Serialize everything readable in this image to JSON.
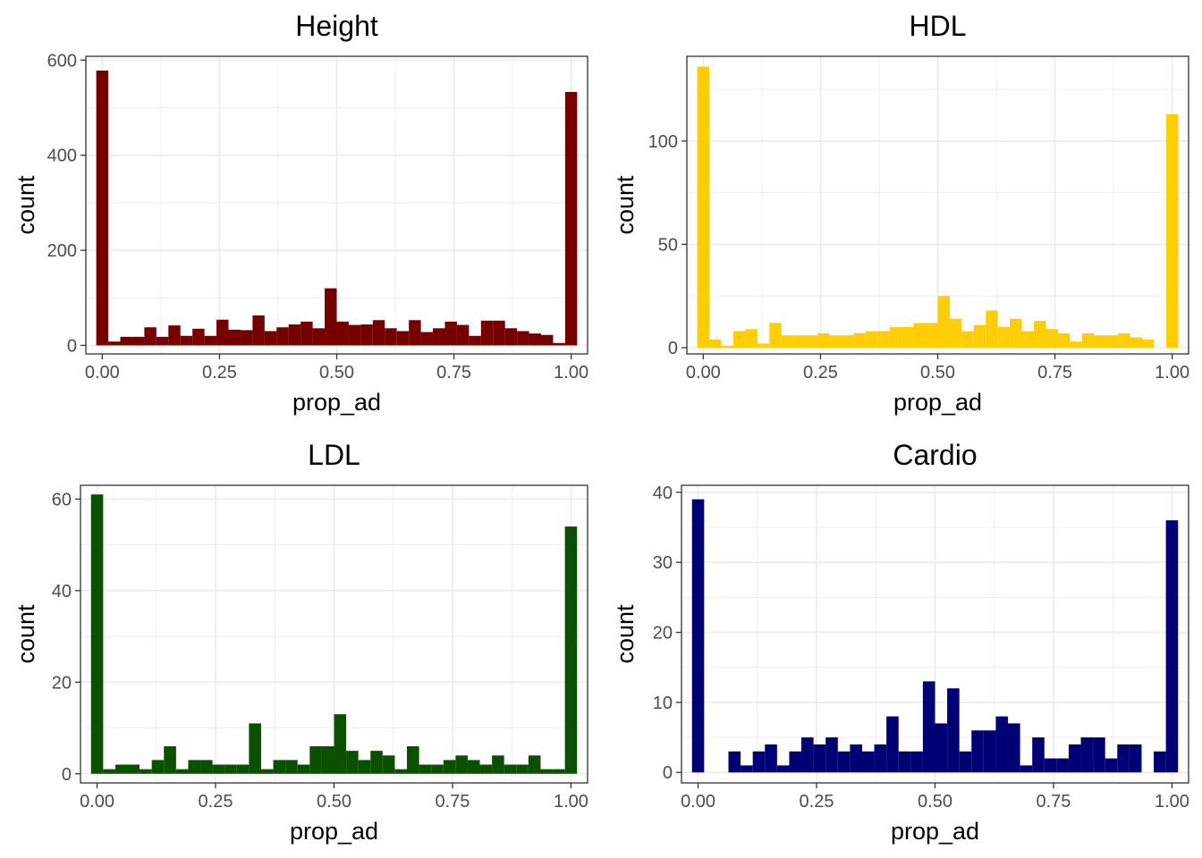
{
  "chart_data": [
    {
      "type": "bar",
      "title": "Height",
      "xlabel": "prop_ad",
      "ylabel": "count",
      "color": "#760000",
      "xlim": [
        -0.035,
        1.035
      ],
      "ylim": [
        -18,
        608
      ],
      "xticks": [
        "0.00",
        "0.25",
        "0.50",
        "0.75",
        "1.00"
      ],
      "xtick_values": [
        0,
        0.25,
        0.5,
        0.75,
        1.0
      ],
      "yticks": [
        "0",
        "200",
        "400",
        "600"
      ],
      "ytick_values": [
        0,
        200,
        400,
        600
      ],
      "bin_width": 0.02564,
      "bin_start": -0.01282,
      "values": [
        578,
        8,
        18,
        18,
        38,
        18,
        42,
        20,
        35,
        20,
        54,
        33,
        32,
        63,
        30,
        38,
        44,
        50,
        36,
        120,
        50,
        43,
        44,
        53,
        36,
        30,
        53,
        28,
        36,
        50,
        43,
        20,
        52,
        52,
        36,
        30,
        25,
        22,
        5,
        533
      ],
      "grid": true,
      "legend": "none"
    },
    {
      "type": "bar",
      "title": "HDL",
      "xlabel": "prop_ad",
      "ylabel": "count",
      "color": "#FDCD07",
      "xlim": [
        -0.035,
        1.035
      ],
      "ylim": [
        -3,
        141
      ],
      "xticks": [
        "0.00",
        "0.25",
        "0.50",
        "0.75",
        "1.00"
      ],
      "xtick_values": [
        0,
        0.25,
        0.5,
        0.75,
        1.0
      ],
      "yticks": [
        "0",
        "50",
        "100"
      ],
      "ytick_values": [
        0,
        50,
        100
      ],
      "bin_width": 0.02564,
      "bin_start": -0.01282,
      "values": [
        136,
        4,
        1,
        8,
        9,
        2,
        12,
        6,
        6,
        6,
        7,
        6,
        6,
        7,
        8,
        8,
        10,
        10,
        12,
        12,
        25,
        14,
        8,
        11,
        18,
        10,
        14,
        8,
        13,
        9,
        7,
        3,
        7,
        6,
        6,
        7,
        5,
        4,
        0,
        113
      ],
      "grid": true,
      "legend": "none"
    },
    {
      "type": "bar",
      "title": "LDL",
      "xlabel": "prop_ad",
      "ylabel": "count",
      "color": "#0A5000",
      "xlim": [
        -0.035,
        1.035
      ],
      "ylim": [
        -2,
        63
      ],
      "xticks": [
        "0.00",
        "0.25",
        "0.50",
        "0.75",
        "1.00"
      ],
      "xtick_values": [
        0,
        0.25,
        0.5,
        0.75,
        1.0
      ],
      "yticks": [
        "0",
        "20",
        "40",
        "60"
      ],
      "ytick_values": [
        0,
        20,
        40,
        60
      ],
      "bin_width": 0.02564,
      "bin_start": -0.01282,
      "values": [
        61,
        1,
        2,
        2,
        1,
        3,
        6,
        1,
        3,
        3,
        2,
        2,
        2,
        11,
        1,
        3,
        3,
        2,
        6,
        6,
        13,
        5,
        3,
        5,
        4,
        1,
        6,
        2,
        2,
        3,
        4,
        3,
        2,
        4,
        2,
        2,
        4,
        1,
        1,
        54
      ],
      "grid": true,
      "legend": "none"
    },
    {
      "type": "bar",
      "title": "Cardio",
      "xlabel": "prop_ad",
      "ylabel": "count",
      "color": "#000075",
      "xlim": [
        -0.035,
        1.035
      ],
      "ylim": [
        -1.5,
        41
      ],
      "xticks": [
        "0.00",
        "0.25",
        "0.50",
        "0.75",
        "1.00"
      ],
      "xtick_values": [
        0,
        0.25,
        0.5,
        0.75,
        1.0
      ],
      "yticks": [
        "0",
        "10",
        "20",
        "30",
        "40"
      ],
      "ytick_values": [
        0,
        10,
        20,
        30,
        40
      ],
      "bin_width": 0.02564,
      "bin_start": -0.01282,
      "values": [
        39,
        0,
        0,
        3,
        1,
        3,
        4,
        1,
        3,
        5,
        4,
        5,
        3,
        4,
        3,
        4,
        8,
        3,
        3,
        13,
        7,
        12,
        3,
        6,
        6,
        8,
        7,
        1,
        5,
        2,
        2,
        4,
        5,
        5,
        2,
        4,
        4,
        0,
        3,
        36
      ],
      "grid": true,
      "legend": "none"
    }
  ]
}
